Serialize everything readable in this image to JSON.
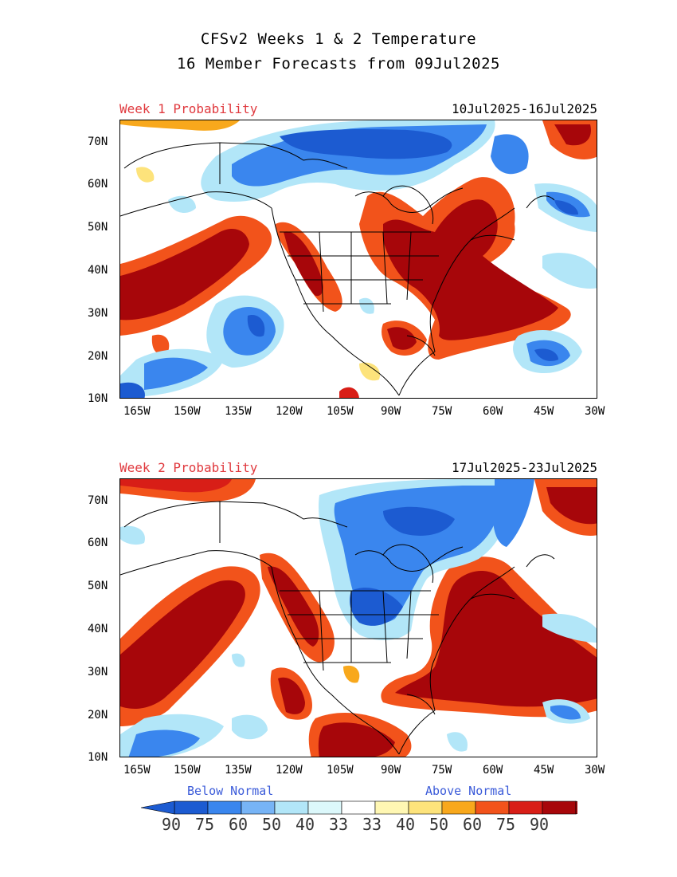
{
  "header": {
    "title_line1": "CFSv2 Weeks 1 & 2 Temperature",
    "title_line2": "16 Member Forecasts from 09Jul2025"
  },
  "panels": [
    {
      "label": "Week 1 Probability",
      "dates": "10Jul2025-16Jul2025"
    },
    {
      "label": "Week 2 Probability",
      "dates": "17Jul2025-23Jul2025"
    }
  ],
  "axes": {
    "lat_labels": [
      "70N",
      "60N",
      "50N",
      "40N",
      "30N",
      "20N",
      "10N"
    ],
    "lon_labels": [
      "165W",
      "150W",
      "135W",
      "120W",
      "105W",
      "90W",
      "75W",
      "60W",
      "45W",
      "30W"
    ]
  },
  "legend": {
    "below_label": "Below Normal",
    "above_label": "Above Normal",
    "numbers": [
      "90",
      "75",
      "60",
      "50",
      "40",
      "33",
      "33",
      "40",
      "50",
      "60",
      "75",
      "90"
    ],
    "colors": [
      "#1c5bd1",
      "#3a86ee",
      "#77b4f6",
      "#b2e6f8",
      "#dcf8fb",
      "#ffffff",
      "#fff7b3",
      "#fde37b",
      "#f8a81c",
      "#f2531b",
      "#d81e17",
      "#a7060a"
    ]
  },
  "colors": {
    "below_strong": "#1c5bd1",
    "below_mid": "#3a86ee",
    "below_light": "#b2e6f8",
    "above_light": "#fde37b",
    "above_mid": "#f2531b",
    "above_strong": "#a7060a"
  }
}
